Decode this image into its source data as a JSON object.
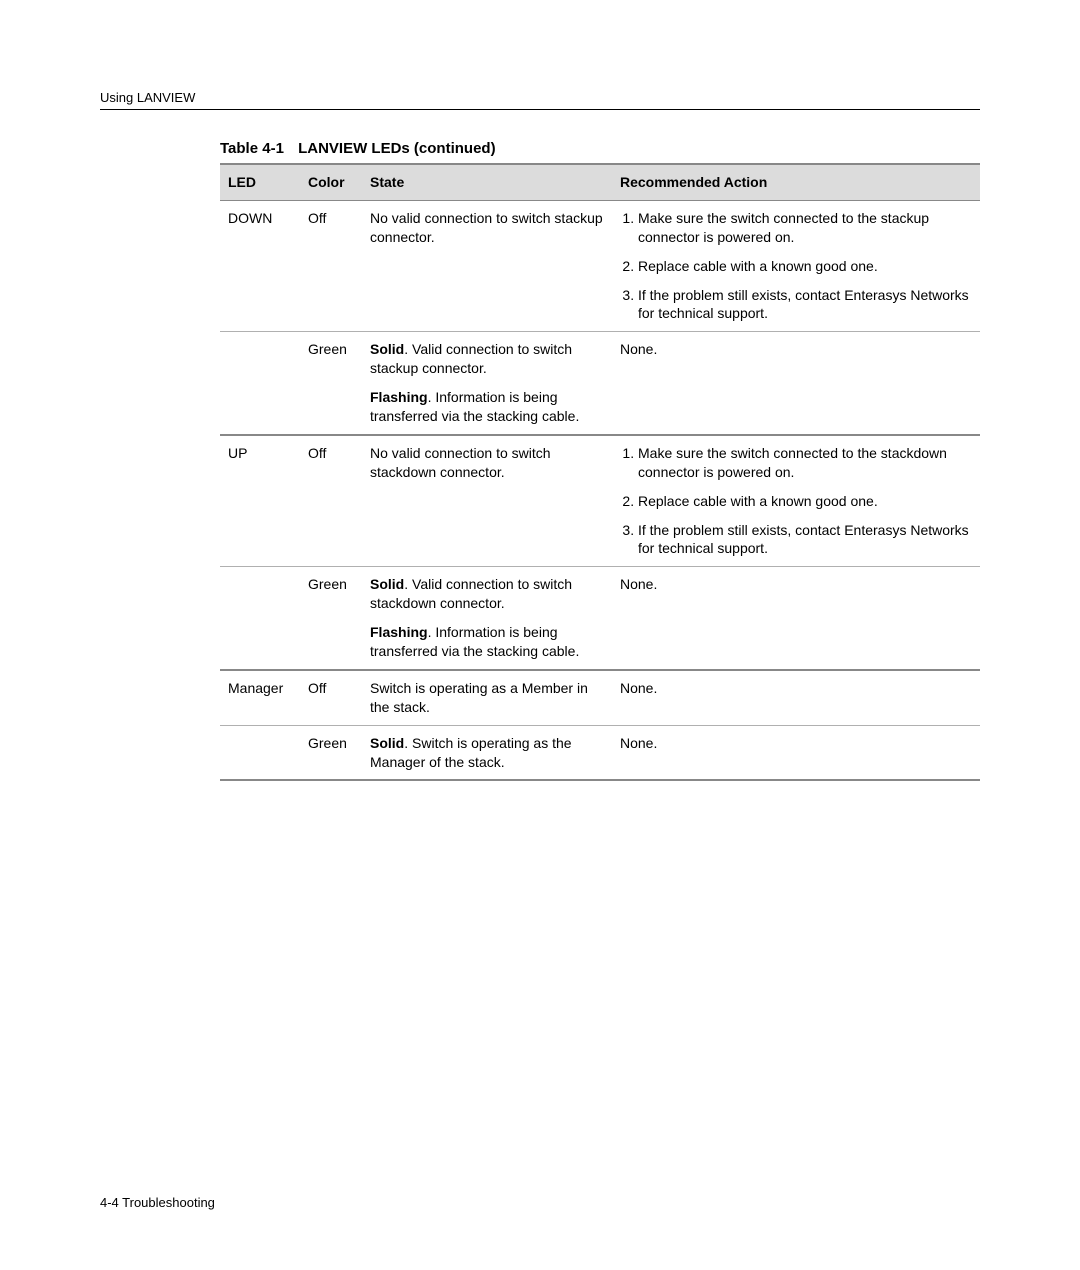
{
  "header": "Using LANVIEW",
  "caption_num": "Table 4-1",
  "caption_txt": "LANVIEW LEDs (continued)",
  "columns": {
    "led": "LED",
    "color": "Color",
    "state": "State",
    "action": "Recommended Action"
  },
  "rows": {
    "down_off": {
      "led": "DOWN",
      "color": "Off",
      "state": "No valid connection to switch stackup connector.",
      "actions": [
        "Make sure the switch connected to the stackup connector is powered on.",
        "Replace cable with a known good one.",
        "If the problem still exists, contact Enterasys Networks for technical support."
      ]
    },
    "down_green": {
      "color": "Green",
      "state1_bold": "Solid",
      "state1_rest": ". Valid connection to switch stackup connector.",
      "state2_bold": "Flashing",
      "state2_rest": ". Information is being transferred via the stacking cable.",
      "action": "None."
    },
    "up_off": {
      "led": "UP",
      "color": "Off",
      "state": "No valid connection to switch stackdown connector.",
      "actions": [
        "Make sure the switch connected to the stackdown connector is powered on.",
        "Replace cable with a known good one.",
        "If the problem still exists, contact Enterasys Networks for technical support."
      ]
    },
    "up_green": {
      "color": "Green",
      "state1_bold": "Solid",
      "state1_rest": ". Valid connection to switch stackdown connector.",
      "state2_bold": "Flashing",
      "state2_rest": ". Information is being transferred via the stacking cable.",
      "action": "None."
    },
    "mgr_off": {
      "led": "Manager",
      "color": "Off",
      "state": "Switch is operating as a Member in the stack.",
      "action": "None."
    },
    "mgr_green": {
      "color": "Green",
      "state_bold": "Solid",
      "state_rest": ". Switch is operating as the Manager of the stack.",
      "action": "None."
    }
  },
  "footer": "4-4   Troubleshooting"
}
